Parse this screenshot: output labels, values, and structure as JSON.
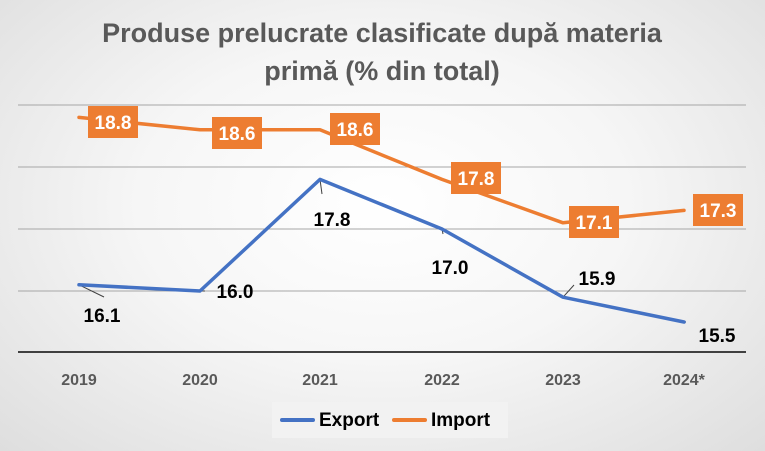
{
  "chart_data": {
    "type": "line",
    "title": "Produse prelucrate clasificate după materia primă (% din total)",
    "title_lines": [
      "Produse prelucrate clasificate după materia",
      "primă (% din total)"
    ],
    "categories": [
      "2019",
      "2020",
      "2021",
      "2022",
      "2023",
      "2024*"
    ],
    "series": [
      {
        "name": "Export",
        "color": "#4472C4",
        "values": [
          16.1,
          16.0,
          17.8,
          17.0,
          15.9,
          15.5
        ],
        "labels": [
          "16.1",
          "16.0",
          "17.8",
          "17.0",
          "15.9",
          "15.5"
        ]
      },
      {
        "name": "Import",
        "color": "#ED7D31",
        "values": [
          18.8,
          18.6,
          18.6,
          17.8,
          17.1,
          17.3
        ],
        "labels": [
          "18.8",
          "18.6",
          "18.6",
          "17.8",
          "17.1",
          "17.3"
        ]
      }
    ],
    "grid": true,
    "legend_position": "bottom",
    "xlabel": "",
    "ylabel": ""
  }
}
